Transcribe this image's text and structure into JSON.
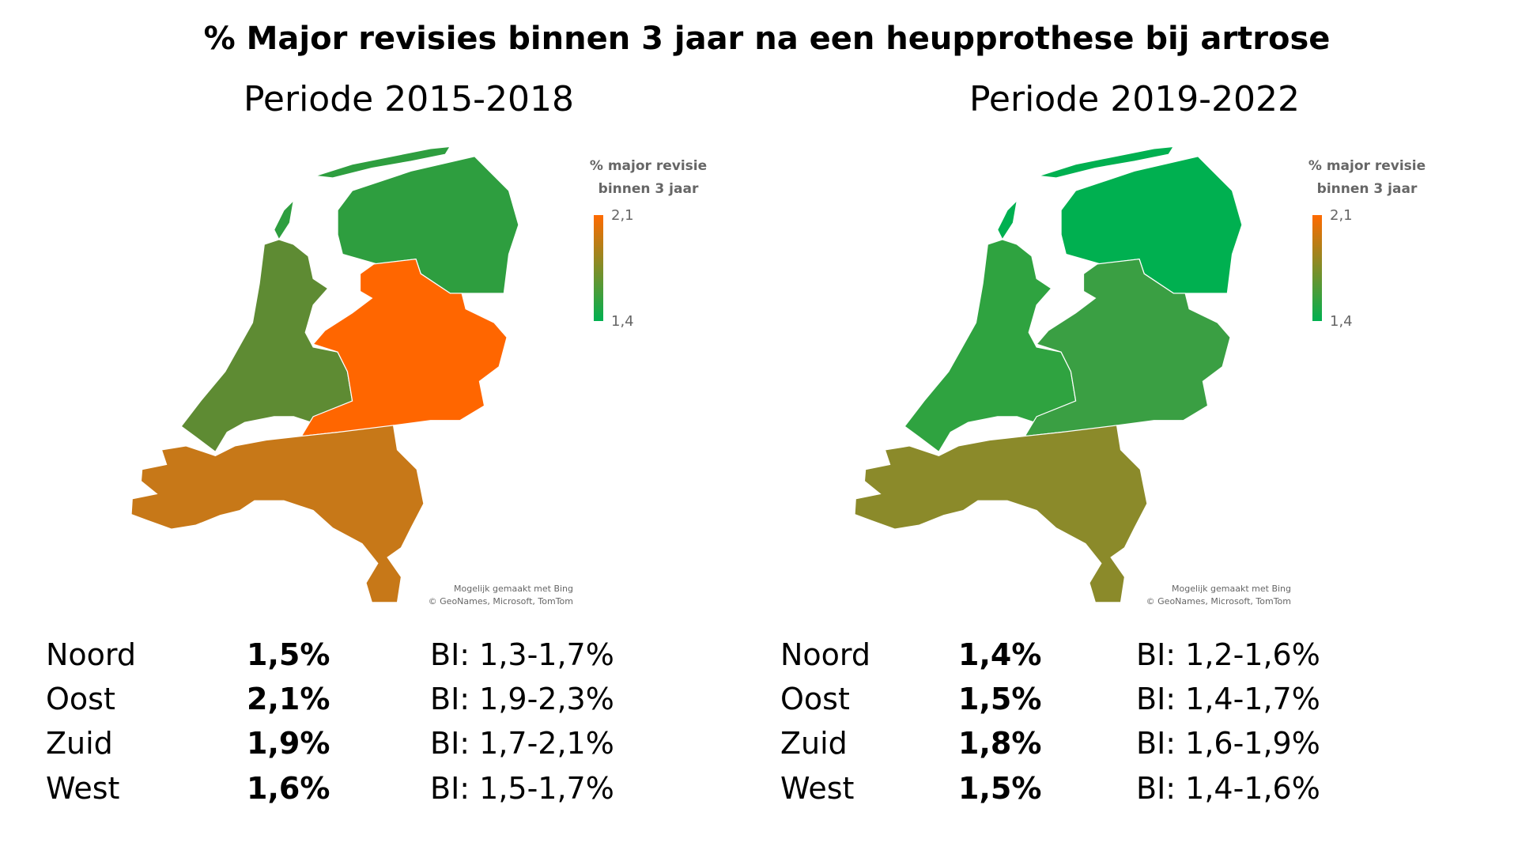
{
  "title": "% Major revisies binnen 3 jaar na een heupprothese bij artrose",
  "chart_data": [
    {
      "type": "choropleth",
      "title": "Periode 2015-2018",
      "legend": {
        "title_line1": "% major revisie",
        "title_line2": "binnen 3 jaar",
        "max_label": "2,1",
        "min_label": "1,4",
        "max": 2.1,
        "min": 1.4,
        "max_color": "#ff6a00",
        "min_color": "#00b050"
      },
      "attribution_line1": "Mogelijk gemaakt met Bing",
      "attribution_line2": "© GeoNames, Microsoft, TomTom",
      "regions": [
        {
          "name": "Noord",
          "value": 1.5,
          "value_label": "1,5%",
          "ci_label": "BI: 1,3-1,7%",
          "color": "#2e9e3f"
        },
        {
          "name": "Oost",
          "value": 2.1,
          "value_label": "2,1%",
          "ci_label": "BI: 1,9-2,3%",
          "color": "#ff6600"
        },
        {
          "name": "Zuid",
          "value": 1.9,
          "value_label": "1,9%",
          "ci_label": "BI: 1,7-2,1%",
          "color": "#c77818"
        },
        {
          "name": "West",
          "value": 1.6,
          "value_label": "1,6%",
          "ci_label": "BI: 1,5-1,7%",
          "color": "#5e8b33"
        }
      ]
    },
    {
      "type": "choropleth",
      "title": "Periode 2019-2022",
      "legend": {
        "title_line1": "% major revisie",
        "title_line2": "binnen 3 jaar",
        "max_label": "2,1",
        "min_label": "1,4",
        "max": 2.1,
        "min": 1.4,
        "max_color": "#ff6a00",
        "min_color": "#00b050"
      },
      "attribution_line1": "Mogelijk gemaakt met Bing",
      "attribution_line2": "© GeoNames, Microsoft, TomTom",
      "regions": [
        {
          "name": "Noord",
          "value": 1.4,
          "value_label": "1,4%",
          "ci_label": "BI: 1,2-1,6%",
          "color": "#00b050"
        },
        {
          "name": "Oost",
          "value": 1.5,
          "value_label": "1,5%",
          "ci_label": "BI: 1,4-1,7%",
          "color": "#3a9f43"
        },
        {
          "name": "Zuid",
          "value": 1.8,
          "value_label": "1,8%",
          "ci_label": "BI: 1,6-1,9%",
          "color": "#8b8a2a"
        },
        {
          "name": "West",
          "value": 1.5,
          "value_label": "1,5%",
          "ci_label": "BI: 1,4-1,6%",
          "color": "#2fa340"
        }
      ]
    }
  ]
}
